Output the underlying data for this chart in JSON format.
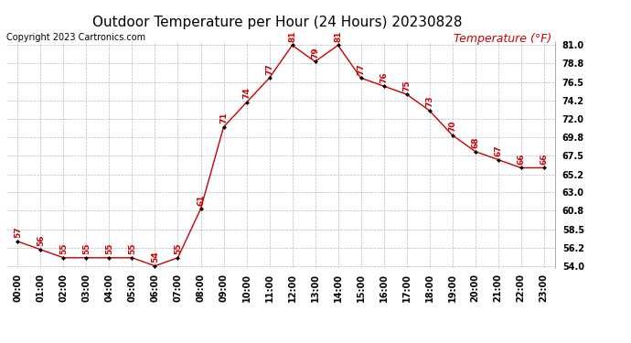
{
  "title": "Outdoor Temperature per Hour (24 Hours) 20230828",
  "copyright": "Copyright 2023 Cartronics.com",
  "legend_label": "Temperature (°F)",
  "hours": [
    "00:00",
    "01:00",
    "02:00",
    "03:00",
    "04:00",
    "05:00",
    "06:00",
    "07:00",
    "08:00",
    "09:00",
    "10:00",
    "11:00",
    "12:00",
    "13:00",
    "14:00",
    "15:00",
    "16:00",
    "17:00",
    "18:00",
    "19:00",
    "20:00",
    "21:00",
    "22:00",
    "23:00"
  ],
  "temps": [
    57,
    56,
    55,
    55,
    55,
    55,
    54,
    55,
    61,
    71,
    74,
    77,
    81,
    79,
    81,
    77,
    76,
    75,
    73,
    70,
    68,
    67,
    66,
    66
  ],
  "line_color": "#cc0000",
  "marker_color": "#000000",
  "grid_color": "#bbbbbb",
  "background_color": "#ffffff",
  "text_color_red": "#cc0000",
  "text_color_black": "#000000",
  "ylim_min": 54.0,
  "ylim_max": 81.0,
  "ytick_labels": [
    "54.0",
    "56.2",
    "58.5",
    "60.8",
    "63.0",
    "65.2",
    "67.5",
    "69.8",
    "72.0",
    "74.2",
    "76.5",
    "78.8",
    "81.0"
  ],
  "ytick_vals": [
    54.0,
    56.2,
    58.5,
    60.8,
    63.0,
    65.2,
    67.5,
    69.8,
    72.0,
    74.2,
    76.5,
    78.8,
    81.0
  ],
  "title_fontsize": 11,
  "copyright_fontsize": 7,
  "legend_fontsize": 9,
  "label_fontsize": 6.5,
  "tick_fontsize": 7
}
